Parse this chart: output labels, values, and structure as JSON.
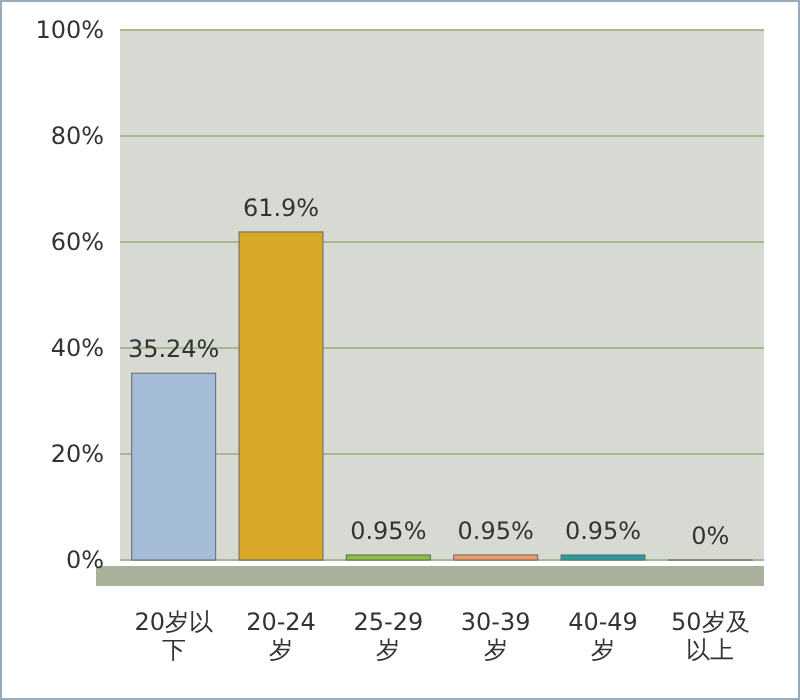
{
  "chart_data": {
    "type": "bar",
    "categories": [
      "20岁以下",
      "20-24岁",
      "25-29岁",
      "30-39岁",
      "40-49岁",
      "50岁及以上"
    ],
    "values": [
      35.24,
      61.9,
      0.95,
      0.95,
      0.95,
      0
    ],
    "colors": [
      "#a4bcd8",
      "#d8a828",
      "#8cc040",
      "#f09a68",
      "#20a0a0",
      "#e07484"
    ],
    "value_labels": [
      "35.24%",
      "61.9%",
      "0.95%",
      "0.95%",
      "0.95%",
      "0%"
    ],
    "ylim": [
      0,
      100
    ],
    "yticks": [
      {
        "value": 0,
        "label": "0%"
      },
      {
        "value": 20,
        "label": "20%"
      },
      {
        "value": 40,
        "label": "40%"
      },
      {
        "value": 60,
        "label": "60%"
      },
      {
        "value": 80,
        "label": "80%"
      },
      {
        "value": 100,
        "label": "100%"
      }
    ],
    "grid": "y"
  }
}
